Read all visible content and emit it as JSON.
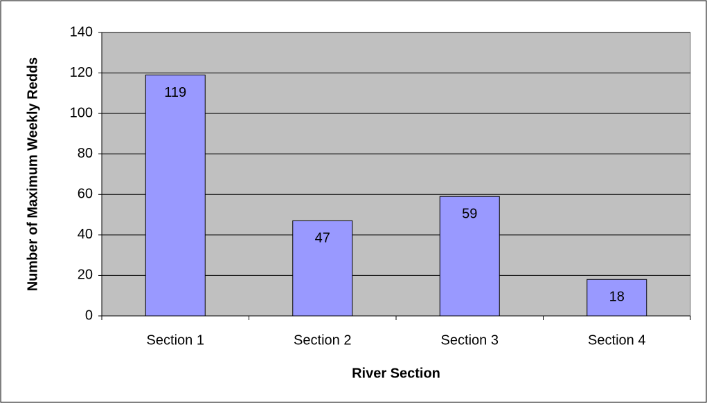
{
  "chart_data": {
    "type": "bar",
    "x_label": "River Section",
    "y_label": "Number of Maximum Weekly Redds",
    "categories": [
      "Section 1",
      "Section 2",
      "Section 3",
      "Section 4"
    ],
    "values": [
      119,
      47,
      59,
      18
    ],
    "color": "#9999ff",
    "ylim": [
      0,
      140
    ],
    "yticks": [
      0,
      20,
      40,
      60,
      80,
      100,
      120,
      140
    ],
    "grid": true
  }
}
